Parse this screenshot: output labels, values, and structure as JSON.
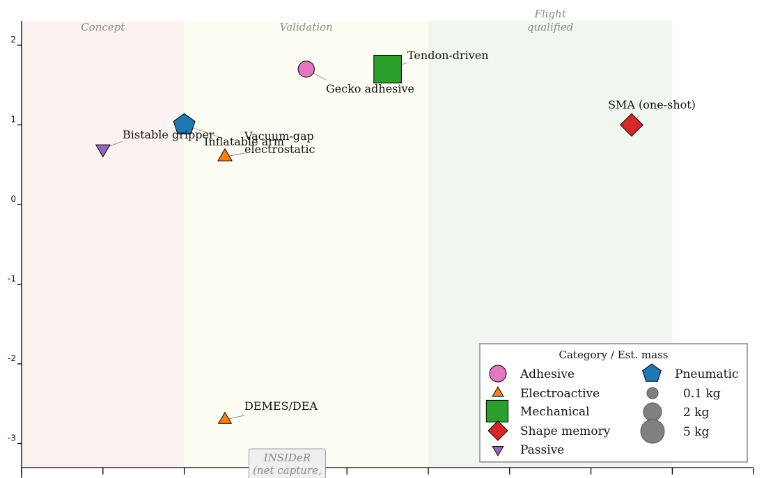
{
  "chart_data": {
    "type": "scatter",
    "x_tick_count": 10,
    "xlim": [
      0,
      9.5
    ],
    "ylim": [
      -3.3,
      2.3
    ],
    "yscale": "log10",
    "y_ticks": [
      -3,
      -2,
      -1,
      0,
      1,
      2
    ],
    "y_tick_labels": [
      "-3",
      "-2",
      "-1",
      "0",
      "1",
      "2"
    ],
    "phases": [
      {
        "label": "Concept",
        "x_start": 0,
        "x_end": 2
      },
      {
        "label": "Validation",
        "x_start": 2,
        "x_end": 5
      },
      {
        "label": "Flight\nqualified",
        "x_start": 5,
        "x_end": 8
      }
    ],
    "points": [
      {
        "label": "Gecko adhesive",
        "category": "Adhesive",
        "x": 3.5,
        "y": 1.7,
        "mass_kg": 0.5
      },
      {
        "label": "Tendon-driven",
        "category": "Mechanical",
        "x": 4.5,
        "y": 1.7,
        "mass_kg": 5
      },
      {
        "label": "SMA (one-shot)",
        "category": "Shape memory",
        "x": 7.5,
        "y": 1.0,
        "mass_kg": 2
      },
      {
        "label": "Inflatable arm",
        "category": "Pneumatic",
        "x": 2.0,
        "y": 1.0,
        "mass_kg": 2
      },
      {
        "label": "Bistable gripper",
        "category": "Passive",
        "x": 1.0,
        "y": 0.7,
        "mass_kg": 0.5
      },
      {
        "label": "Vacuum-gap\nelectrostatic",
        "category": "Electroactive",
        "x": 2.5,
        "y": 0.6,
        "mass_kg": 0.5
      },
      {
        "label": "DEMES/DEA",
        "category": "Electroactive",
        "x": 2.5,
        "y": -2.7,
        "mass_kg": 0.3
      }
    ],
    "callout": {
      "text": "INSIDeR\n(net capture,",
      "x": 3.0
    },
    "legend": {
      "title": "Category / Est. mass",
      "position": "lower-right",
      "categories": [
        {
          "name": "Adhesive",
          "color": "#e377c2",
          "marker": "circle"
        },
        {
          "name": "Electroactive",
          "color": "#ff7f0e",
          "marker": "triangle-up"
        },
        {
          "name": "Mechanical",
          "color": "#2ca02c",
          "marker": "square"
        },
        {
          "name": "Shape memory",
          "color": "#d62728",
          "marker": "diamond"
        },
        {
          "name": "Passive",
          "color": "#9467bd",
          "marker": "triangle-down"
        },
        {
          "name": "Pneumatic",
          "color": "#1f77b4",
          "marker": "pentagon"
        }
      ],
      "sizes": [
        {
          "label": "0.1 kg",
          "mass_kg": 0.1
        },
        {
          "label": "2 kg",
          "mass_kg": 2
        },
        {
          "label": "5 kg",
          "mass_kg": 5
        }
      ]
    }
  }
}
